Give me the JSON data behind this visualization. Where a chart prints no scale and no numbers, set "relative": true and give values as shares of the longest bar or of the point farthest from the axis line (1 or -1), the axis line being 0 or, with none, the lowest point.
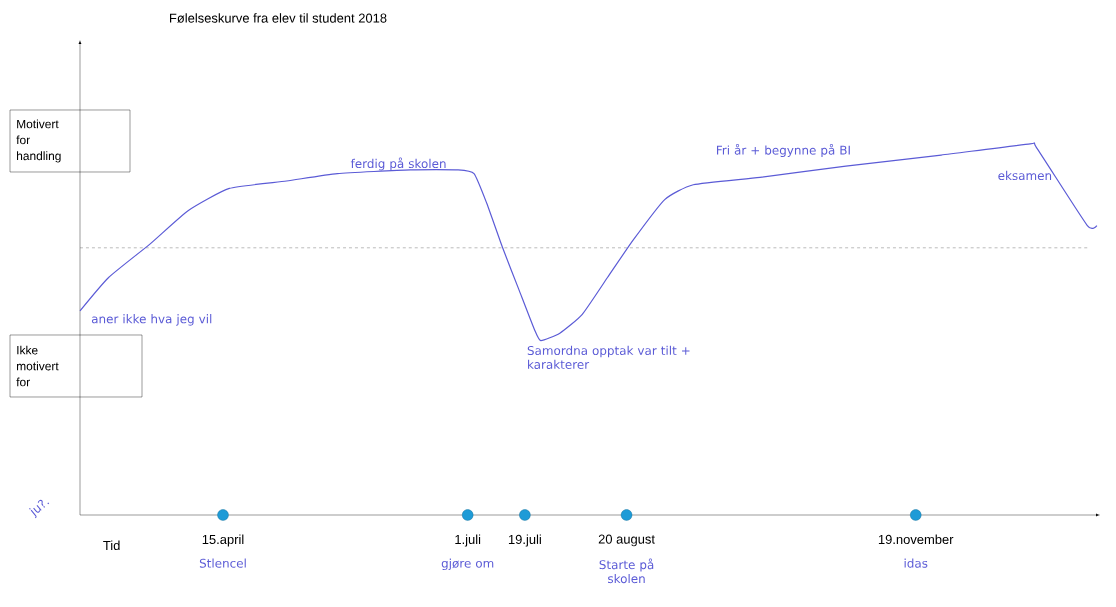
{
  "chart_data": {
    "type": "line",
    "title": "Følelseskurve fra elev til student  2018",
    "xlabel": "Tid",
    "relative": true,
    "x": [
      "2018-03-01",
      "2018-03-10",
      "2018-03-23",
      "2018-04-04",
      "2018-04-17",
      "2018-05-05",
      "2018-05-21",
      "2018-06-13",
      "2018-06-28",
      "2018-07-03",
      "2018-07-07",
      "2018-07-12",
      "2018-07-17",
      "2018-07-22",
      "2018-07-24",
      "2018-07-30",
      "2018-08-06",
      "2018-08-14",
      "2018-08-22",
      "2018-09-01",
      "2018-09-10",
      "2018-10-01",
      "2018-10-28",
      "2018-11-27",
      "2018-12-25",
      "2018-12-27",
      "2019-01-12",
      "2019-01-15"
    ],
    "series": [
      {
        "color": "#5b5bd6",
        "values": [
          0.55,
          0.64,
          0.73,
          0.82,
          0.88,
          0.9,
          0.92,
          0.93,
          0.93,
          0.92,
          0.84,
          0.72,
          0.61,
          0.5,
          0.47,
          0.49,
          0.54,
          0.64,
          0.74,
          0.85,
          0.89,
          0.91,
          0.94,
          0.97,
          1.0,
          0.99,
          0.78,
          0.78
        ]
      },
      {
        "type": "scatter",
        "marker": "circle",
        "color": "#1e9bd7",
        "x": [
          "2018-04-15",
          "2018-07-01",
          "2018-07-19",
          "2018-08-20",
          "2018-11-19"
        ],
        "values": [
          0,
          0,
          0,
          0,
          0
        ]
      }
    ],
    "xlim": [
      "2018-03-01",
      "2019-01-16"
    ],
    "xticks": [
      {
        "value": "2018-04-15",
        "label": "15.april"
      },
      {
        "value": "2018-07-01",
        "label": "1.juli"
      },
      {
        "value": "2018-07-19",
        "label": "19.juli"
      },
      {
        "value": "2018-08-20",
        "label": "20 august"
      },
      {
        "value": "2018-11-19",
        "label": "19.november"
      }
    ],
    "ref_lines": [
      {
        "axis": "y",
        "value": 0.72,
        "color": "#555555",
        "line_style": "dashed"
      }
    ],
    "marker": "none",
    "line_style": "solid",
    "annotations": [
      {
        "text": "aner ikke hva jeg vil",
        "x": "2018-03-01",
        "y": 0.55
      },
      {
        "text": "ferdig på skolen",
        "x": "2018-05-21",
        "y": 0.92
      },
      {
        "text": "Samordna opptak var tilt + karakterer",
        "x": "2018-07-24",
        "y": 0.47
      },
      {
        "text": "Fri år + begynne på BI",
        "x": "2018-10-28",
        "y": 0.94
      },
      {
        "text": "eksamen",
        "x": "2018-12-27",
        "y": 0.99
      },
      "Stlencel",
      "gjøre om",
      "Starte på skolen",
      "idas",
      "Motivert for handling",
      "Ikke motivert for",
      "ju?."
    ]
  }
}
